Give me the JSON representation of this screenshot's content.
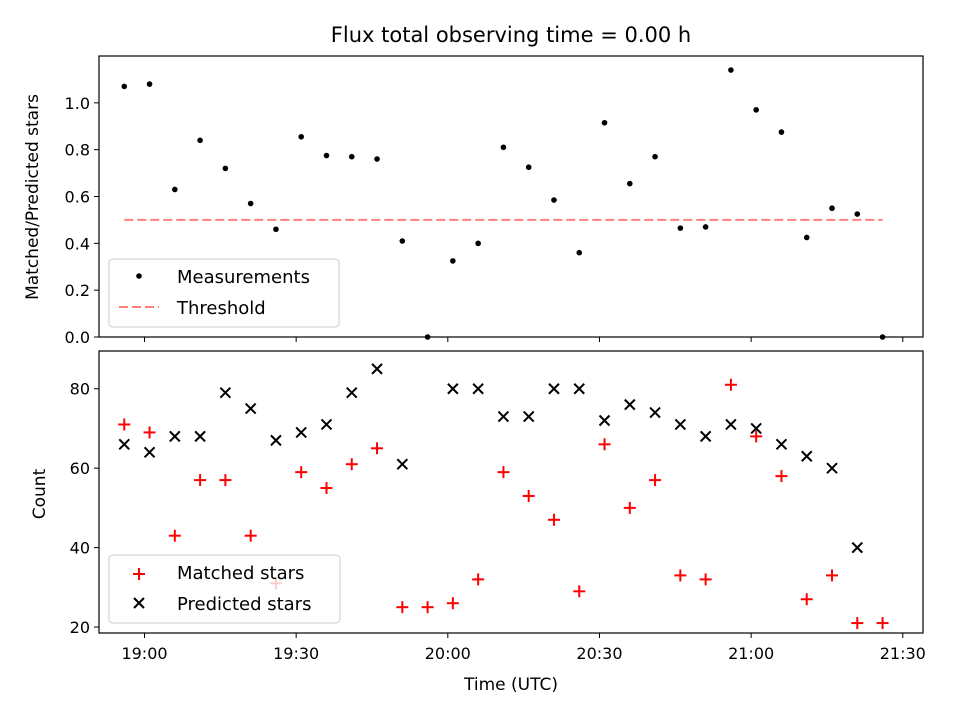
{
  "chart_data": [
    {
      "type": "scatter",
      "title": "Flux total observing time = 0.00 h",
      "xlabel": "",
      "ylabel": "Matched/Predicted stars",
      "xlim": [
        "18:51",
        "21:34"
      ],
      "ylim": [
        0,
        1.2
      ],
      "yticks": [
        0.0,
        0.2,
        0.4,
        0.6,
        0.8,
        1.0
      ],
      "ytick_labels": [
        "0.0",
        "0.2",
        "0.4",
        "0.6",
        "0.8",
        "1.0"
      ],
      "legend": "lower-left",
      "grid": false,
      "series": [
        {
          "name": "Measurements",
          "marker": "dot",
          "color": "#000000",
          "x": [
            "18:56",
            "19:01",
            "19:06",
            "19:11",
            "19:16",
            "19:21",
            "19:26",
            "19:31",
            "19:36",
            "19:41",
            "19:46",
            "19:51",
            "19:56",
            "20:01",
            "20:06",
            "20:11",
            "20:16",
            "20:21",
            "20:26",
            "20:31",
            "20:36",
            "20:41",
            "20:46",
            "20:51",
            "20:56",
            "21:01",
            "21:06",
            "21:11",
            "21:16",
            "21:21",
            "21:26"
          ],
          "y": [
            1.07,
            1.08,
            0.63,
            0.84,
            0.72,
            0.57,
            0.46,
            0.855,
            0.775,
            0.77,
            0.76,
            0.41,
            0.0,
            0.325,
            0.4,
            0.81,
            0.725,
            0.585,
            0.36,
            0.915,
            0.655,
            0.77,
            0.465,
            0.47,
            1.14,
            0.97,
            0.875,
            0.425,
            0.55,
            0.525,
            0.0
          ]
        },
        {
          "name": "Threshold",
          "marker": "dashed-line",
          "color": "#ff7f7f",
          "x": [
            "18:56",
            "21:26"
          ],
          "y": [
            0.5,
            0.5
          ]
        }
      ]
    },
    {
      "type": "scatter",
      "title": "",
      "xlabel": "Time (UTC)",
      "ylabel": "Count",
      "xlim": [
        "18:51",
        "21:34"
      ],
      "ylim": [
        18.5,
        89.5
      ],
      "xticks": [
        "19:00",
        "19:30",
        "20:00",
        "20:30",
        "21:00",
        "21:30"
      ],
      "yticks": [
        20,
        40,
        60,
        80
      ],
      "legend": "lower-left",
      "grid": false,
      "series": [
        {
          "name": "Matched stars",
          "marker": "plus",
          "color": "#ff0000",
          "x": [
            "18:56",
            "19:01",
            "19:06",
            "19:11",
            "19:16",
            "19:21",
            "19:26",
            "19:31",
            "19:36",
            "19:41",
            "19:46",
            "19:51",
            "19:56",
            "20:01",
            "20:06",
            "20:11",
            "20:16",
            "20:21",
            "20:26",
            "20:31",
            "20:36",
            "20:41",
            "20:46",
            "20:51",
            "20:56",
            "21:01",
            "21:06",
            "21:11",
            "21:16",
            "21:21",
            "21:26"
          ],
          "y": [
            71,
            69,
            43,
            57,
            57,
            43,
            31,
            59,
            55,
            61,
            65,
            25,
            25,
            26,
            32,
            59,
            53,
            47,
            29,
            66,
            50,
            57,
            33,
            32,
            81,
            68,
            58,
            27,
            33,
            21,
            21
          ]
        },
        {
          "name": "Predicted stars",
          "marker": "x",
          "color": "#000000",
          "x": [
            "18:56",
            "19:01",
            "19:06",
            "19:11",
            "19:16",
            "19:21",
            "19:26",
            "19:31",
            "19:36",
            "19:41",
            "19:46",
            "19:51",
            "20:01",
            "20:06",
            "20:11",
            "20:16",
            "20:21",
            "20:26",
            "20:31",
            "20:36",
            "20:41",
            "20:46",
            "20:51",
            "20:56",
            "21:01",
            "21:06",
            "21:11",
            "21:16",
            "21:21"
          ],
          "y": [
            66,
            64,
            68,
            68,
            79,
            75,
            67,
            69,
            71,
            79,
            85,
            61,
            80,
            80,
            73,
            73,
            80,
            80,
            72,
            76,
            74,
            71,
            68,
            71,
            70,
            66,
            63,
            60,
            40
          ]
        }
      ]
    }
  ]
}
